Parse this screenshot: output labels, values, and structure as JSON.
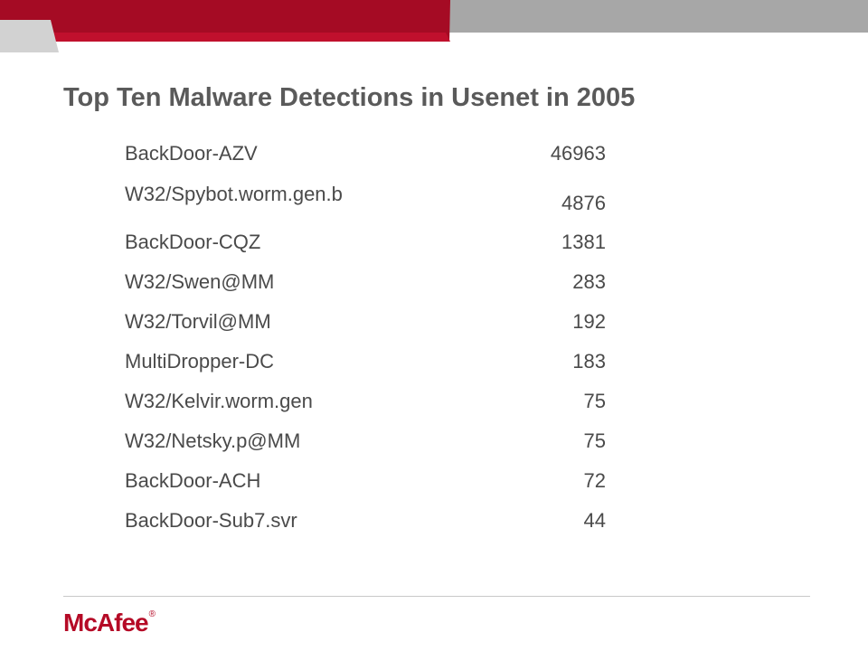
{
  "slide": {
    "title": "Top Ten Malware Detections in Usenet in 2005"
  },
  "detections": [
    {
      "name": "BackDoor-AZV",
      "count": "46963"
    },
    {
      "name": "W32/Spybot.worm.gen.b",
      "count": "4876"
    },
    {
      "name": "BackDoor-CQZ",
      "count": "1381"
    },
    {
      "name": "W32/Swen@MM",
      "count": "283"
    },
    {
      "name": "W32/Torvil@MM",
      "count": "192"
    },
    {
      "name": "MultiDropper-DC",
      "count": "183"
    },
    {
      "name": "W32/Kelvir.worm.gen",
      "count": "75"
    },
    {
      "name": "W32/Netsky.p@MM",
      "count": "75"
    },
    {
      "name": "BackDoor-ACH",
      "count": "72"
    },
    {
      "name": "BackDoor-Sub7.svr",
      "count": "44"
    }
  ],
  "footer": {
    "logo_text": "McAfee",
    "logo_mark": "®"
  },
  "colors": {
    "brand_red": "#a50b24",
    "header_gray": "#a7a7a7",
    "title_gray": "#5a5a5a"
  }
}
